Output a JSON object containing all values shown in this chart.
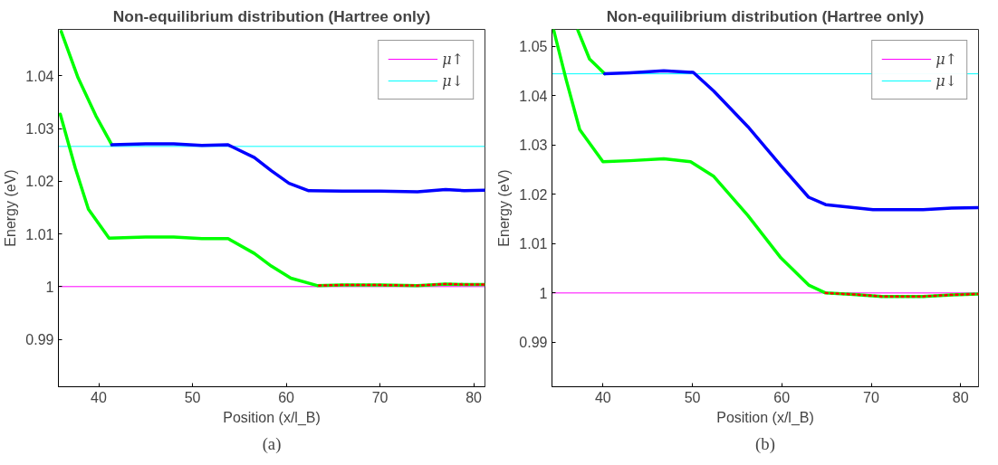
{
  "chart_data": [
    {
      "type": "line",
      "title": "Non-equilibrium distribution (Hartree only)",
      "xlabel": "Position (x/l_B)",
      "ylabel": "Energy (eV)",
      "annotations": [
        "(a)"
      ],
      "xlim": [
        35.7,
        81.2
      ],
      "xticks": [
        40,
        50,
        60,
        70,
        80
      ],
      "ylim": [
        0.981,
        1.0488
      ],
      "yticks": [
        0.99,
        1,
        1.01,
        1.02,
        1.03,
        1.04
      ],
      "grid": false,
      "legend": "top right",
      "line_style": "solid",
      "series": [
        {
          "color": "#00ff00",
          "x": [
            36.0,
            37.8,
            39.7,
            41.4
          ],
          "values": [
            1.0484,
            1.0396,
            1.0324,
            1.0269
          ]
        },
        {
          "color": "#0000ff",
          "x": [
            41.4,
            45,
            48,
            51,
            53.8,
            56.6,
            58.4,
            60.3,
            62.4,
            66,
            70,
            74,
            77,
            79,
            81.2
          ],
          "values": [
            1.0269,
            1.0271,
            1.0271,
            1.0268,
            1.0269,
            1.0245,
            1.022,
            1.0196,
            1.0182,
            1.0181,
            1.0181,
            1.018,
            1.0184,
            1.0182,
            1.0183
          ]
        },
        {
          "color": "#00ff00",
          "x": [
            35.9,
            37.5,
            38.9,
            41.1,
            45,
            48,
            51,
            53.8,
            56.6,
            58.4,
            60.5,
            63.3,
            66,
            70,
            74,
            77,
            79,
            81.2
          ],
          "values": [
            1.0327,
            1.0225,
            1.0147,
            1.0092,
            1.0094,
            1.0094,
            1.0091,
            1.0091,
            1.0063,
            1.0039,
            1.0016,
            1.0002,
            1.0003,
            1.0003,
            1.0002,
            1.0005,
            1.0004,
            1.0004
          ]
        },
        {
          "color": "#ff0000",
          "line_style": "dotted",
          "x": [
            63.5,
            66,
            70,
            74,
            77,
            79,
            81.2
          ],
          "values": [
            1.0002,
            1.0003,
            1.0003,
            1.0002,
            1.0005,
            1.0004,
            1.0004
          ]
        }
      ],
      "ref_lines": [
        {
          "axis": "y",
          "value": 1.0,
          "label": "μ↑",
          "color": "#ff00ff"
        },
        {
          "axis": "y",
          "value": 1.0266,
          "label": "μ↓",
          "color": "#00ffff"
        }
      ]
    },
    {
      "type": "line",
      "title": "Non-equilibrium distribution (Hartree only)",
      "xlabel": "Position (x/l_B)",
      "ylabel": "Energy (eV)",
      "annotations": [
        "(b)"
      ],
      "xlim": [
        34.3,
        82
      ],
      "xticks": [
        40,
        50,
        60,
        70,
        80
      ],
      "ylim": [
        0.981,
        1.0534
      ],
      "yticks": [
        0.99,
        1,
        1.01,
        1.02,
        1.03,
        1.04,
        1.05
      ],
      "grid": false,
      "legend": "top right",
      "line_style": "solid",
      "series": [
        {
          "color": "#00ff00",
          "x": [
            37.2,
            38.5,
            40.2
          ],
          "values": [
            1.0532,
            1.0474,
            1.0444
          ]
        },
        {
          "color": "#0000ff",
          "x": [
            40.2,
            43,
            46.8,
            50.1,
            52.4,
            56.2,
            59.9,
            63.0,
            64.9,
            70.2,
            75.8,
            79,
            82
          ],
          "values": [
            1.0444,
            1.0446,
            1.045,
            1.0447,
            1.0409,
            1.0337,
            1.0258,
            1.0194,
            1.0179,
            1.0169,
            1.0169,
            1.0172,
            1.0173
          ]
        },
        {
          "color": "#00ff00",
          "x": [
            34.5,
            35.9,
            37.4,
            40,
            43,
            46.8,
            49.8,
            52.4,
            56.2,
            59.9,
            63.0,
            64.9,
            68,
            71.2,
            75.8,
            79,
            82
          ],
          "values": [
            1.0532,
            1.0431,
            1.0331,
            1.0266,
            1.0268,
            1.0272,
            1.0266,
            1.0236,
            1.0157,
            1.0071,
            1.0016,
            1.0,
            0.9997,
            0.9993,
            0.9993,
            0.9996,
            0.9998
          ]
        },
        {
          "color": "#ff0000",
          "line_style": "dotted",
          "x": [
            64.9,
            68,
            71.2,
            75.8,
            79,
            82
          ],
          "values": [
            1.0,
            0.9997,
            0.9993,
            0.9993,
            0.9996,
            0.9998
          ]
        }
      ],
      "ref_lines": [
        {
          "axis": "y",
          "value": 1.0,
          "label": "μ↑",
          "color": "#ff00ff"
        },
        {
          "axis": "y",
          "value": 1.0444,
          "label": "μ↓",
          "color": "#00ffff"
        }
      ]
    }
  ]
}
